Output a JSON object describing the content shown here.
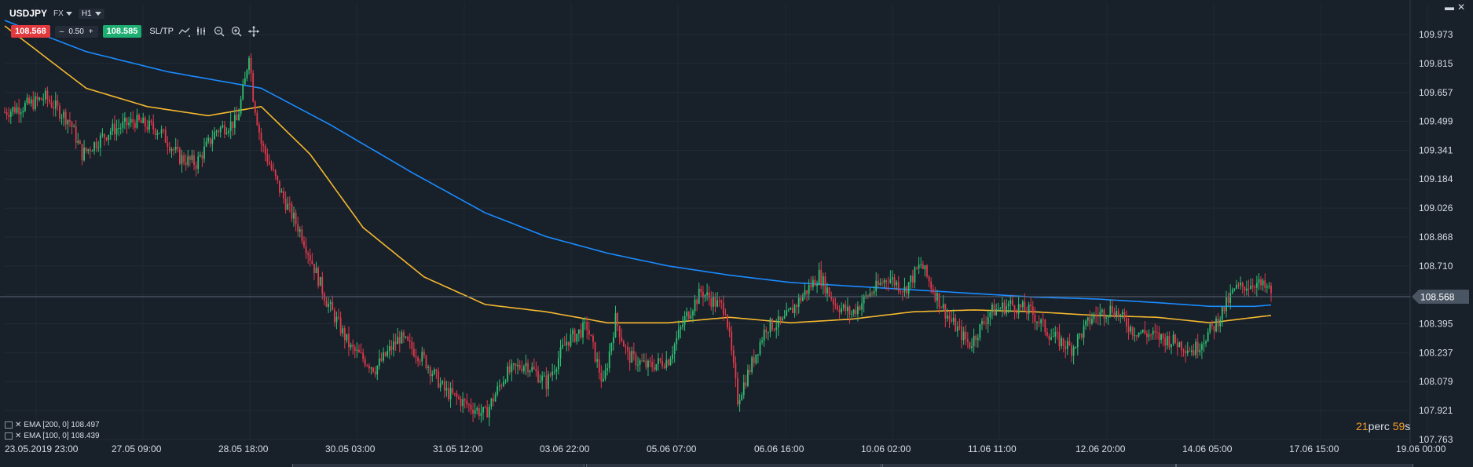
{
  "header": {
    "symbol": "USDJPY",
    "market": "FX",
    "timeframe": "H1",
    "sell_price": "108.568",
    "buy_price": "108.585",
    "quantity": "0.50",
    "minus": "–",
    "plus": "+",
    "sltp_label": "SL/TP"
  },
  "window": {
    "minimize": "▬",
    "close": "✕"
  },
  "legend": [
    {
      "label": "EMA [200, 0] 108.497"
    },
    {
      "label": "EMA [100, 0] 108.439"
    }
  ],
  "timer": {
    "minutes": "21",
    "label": "perc",
    "seconds": "59",
    "suffix": "s"
  },
  "colors": {
    "background": "#18202a",
    "up": "#2fbf71",
    "down": "#e2394a",
    "ema200": "#1a8cff",
    "ema100": "#f5b82e",
    "price_tag": "#4a5563"
  },
  "chart_data": {
    "type": "candlestick",
    "y_min": 107.763,
    "y_max": 109.973,
    "y_ticks": [
      "109.973",
      "109.815",
      "109.657",
      "109.499",
      "109.341",
      "109.184",
      "109.026",
      "108.868",
      "108.710",
      "108.552",
      "108.395",
      "108.237",
      "108.079",
      "107.921",
      "107.763"
    ],
    "current_price": "108.568",
    "x_labels": [
      "23.05.2019 23:00",
      "27.05 09:00",
      "28.05 18:00",
      "30.05 03:00",
      "31.05 12:00",
      "03.06 22:00",
      "05.06 07:00",
      "06.06 16:00",
      "10.06 02:00",
      "11.06 11:00",
      "12.06 20:00",
      "14.06 05:00",
      "17.06 15:00",
      "19.06 00:00"
    ],
    "price_path": [
      [
        0,
        109.55
      ],
      [
        14,
        109.6
      ],
      [
        20,
        109.63
      ],
      [
        32,
        109.5
      ],
      [
        38,
        109.32
      ],
      [
        52,
        109.45
      ],
      [
        64,
        109.5
      ],
      [
        76,
        109.45
      ],
      [
        86,
        109.3
      ],
      [
        94,
        109.27
      ],
      [
        104,
        109.45
      ],
      [
        114,
        109.5
      ],
      [
        118,
        109.72
      ],
      [
        120,
        109.88
      ],
      [
        122,
        109.64
      ],
      [
        126,
        109.38
      ],
      [
        136,
        109.1
      ],
      [
        146,
        108.88
      ],
      [
        158,
        108.52
      ],
      [
        170,
        108.26
      ],
      [
        182,
        108.15
      ],
      [
        194,
        108.32
      ],
      [
        206,
        108.2
      ],
      [
        216,
        108.03
      ],
      [
        226,
        107.96
      ],
      [
        236,
        107.9
      ],
      [
        246,
        108.12
      ],
      [
        256,
        108.18
      ],
      [
        266,
        108.07
      ],
      [
        276,
        108.3
      ],
      [
        286,
        108.38
      ],
      [
        294,
        108.06
      ],
      [
        300,
        108.42
      ],
      [
        306,
        108.22
      ],
      [
        316,
        108.16
      ],
      [
        326,
        108.2
      ],
      [
        334,
        108.42
      ],
      [
        342,
        108.57
      ],
      [
        350,
        108.5
      ],
      [
        354,
        108.48
      ],
      [
        360,
        107.98
      ],
      [
        366,
        108.15
      ],
      [
        374,
        108.38
      ],
      [
        382,
        108.4
      ],
      [
        392,
        108.55
      ],
      [
        400,
        108.66
      ],
      [
        408,
        108.5
      ],
      [
        416,
        108.45
      ],
      [
        424,
        108.55
      ],
      [
        434,
        108.65
      ],
      [
        442,
        108.58
      ],
      [
        450,
        108.72
      ],
      [
        456,
        108.58
      ],
      [
        464,
        108.42
      ],
      [
        474,
        108.28
      ],
      [
        484,
        108.46
      ],
      [
        494,
        108.5
      ],
      [
        504,
        108.46
      ],
      [
        514,
        108.33
      ],
      [
        524,
        108.26
      ],
      [
        534,
        108.43
      ],
      [
        544,
        108.48
      ],
      [
        554,
        108.36
      ],
      [
        564,
        108.33
      ],
      [
        574,
        108.3
      ],
      [
        584,
        108.25
      ],
      [
        594,
        108.38
      ],
      [
        604,
        108.58
      ],
      [
        614,
        108.62
      ],
      [
        622,
        108.57
      ]
    ],
    "ema100": [
      [
        0,
        110.02
      ],
      [
        40,
        109.68
      ],
      [
        70,
        109.58
      ],
      [
        100,
        109.53
      ],
      [
        126,
        109.58
      ],
      [
        150,
        109.32
      ],
      [
        176,
        108.92
      ],
      [
        206,
        108.65
      ],
      [
        236,
        108.5
      ],
      [
        266,
        108.46
      ],
      [
        296,
        108.4
      ],
      [
        326,
        108.4
      ],
      [
        356,
        108.43
      ],
      [
        386,
        108.4
      ],
      [
        416,
        108.42
      ],
      [
        446,
        108.46
      ],
      [
        476,
        108.47
      ],
      [
        506,
        108.46
      ],
      [
        536,
        108.44
      ],
      [
        566,
        108.43
      ],
      [
        592,
        108.4
      ],
      [
        614,
        108.43
      ],
      [
        622,
        108.44
      ]
    ],
    "ema200": [
      [
        0,
        110.05
      ],
      [
        40,
        109.88
      ],
      [
        80,
        109.77
      ],
      [
        126,
        109.68
      ],
      [
        160,
        109.48
      ],
      [
        200,
        109.22
      ],
      [
        236,
        109.0
      ],
      [
        266,
        108.87
      ],
      [
        296,
        108.78
      ],
      [
        326,
        108.71
      ],
      [
        356,
        108.66
      ],
      [
        386,
        108.62
      ],
      [
        416,
        108.6
      ],
      [
        446,
        108.58
      ],
      [
        476,
        108.56
      ],
      [
        506,
        108.54
      ],
      [
        536,
        108.53
      ],
      [
        566,
        108.51
      ],
      [
        592,
        108.49
      ],
      [
        614,
        108.49
      ],
      [
        622,
        108.497
      ]
    ]
  }
}
